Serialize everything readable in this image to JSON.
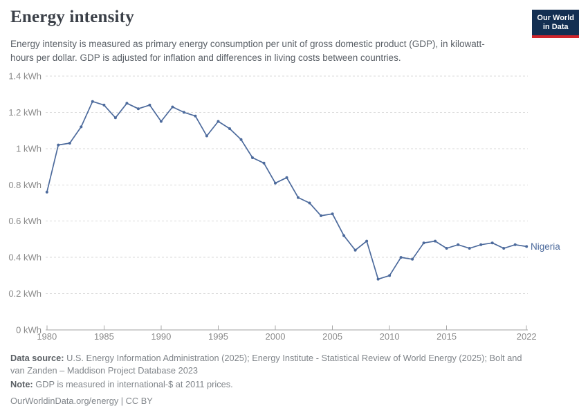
{
  "header": {
    "title": "Energy intensity",
    "subtitle": "Energy intensity is measured as primary energy consumption per unit of gross domestic product (GDP), in kilowatt-hours per dollar. GDP is adjusted for inflation and differences in living costs between countries.",
    "logo": {
      "line1": "Our World",
      "line2": "in Data"
    }
  },
  "chart_data": {
    "type": "line",
    "title": "Energy intensity",
    "unit": "kWh",
    "xlabel": "",
    "ylabel": "",
    "xlim": [
      1980,
      2022
    ],
    "ylim": [
      0,
      1.4
    ],
    "grid": "horizontal-dashed",
    "legend_position": "end-of-line-label",
    "x": [
      1980,
      1981,
      1982,
      1983,
      1984,
      1985,
      1986,
      1987,
      1988,
      1989,
      1990,
      1991,
      1992,
      1993,
      1994,
      1995,
      1996,
      1997,
      1998,
      1999,
      2000,
      2001,
      2002,
      2003,
      2004,
      2005,
      2006,
      2007,
      2008,
      2009,
      2010,
      2011,
      2012,
      2013,
      2014,
      2015,
      2016,
      2017,
      2018,
      2019,
      2020,
      2021,
      2022
    ],
    "series": [
      {
        "name": "Nigeria",
        "color": "#4c6a9c",
        "values": [
          0.76,
          1.02,
          1.03,
          1.12,
          1.26,
          1.24,
          1.17,
          1.25,
          1.22,
          1.24,
          1.15,
          1.23,
          1.2,
          1.18,
          1.07,
          1.15,
          1.11,
          1.05,
          0.95,
          0.92,
          0.81,
          0.84,
          0.73,
          0.7,
          0.63,
          0.64,
          0.52,
          0.44,
          0.49,
          0.28,
          0.3,
          0.4,
          0.39,
          0.48,
          0.49,
          0.45,
          0.47,
          0.45,
          0.47,
          0.48,
          0.45,
          0.47,
          0.46
        ]
      }
    ],
    "x_ticks": [
      {
        "year": 1980,
        "label": "1980"
      },
      {
        "year": 1985,
        "label": "1985"
      },
      {
        "year": 1990,
        "label": "1990"
      },
      {
        "year": 1995,
        "label": "1995"
      },
      {
        "year": 2000,
        "label": "2000"
      },
      {
        "year": 2005,
        "label": "2005"
      },
      {
        "year": 2010,
        "label": "2010"
      },
      {
        "year": 2015,
        "label": "2015"
      },
      {
        "year": 2022,
        "label": "2022"
      }
    ],
    "y_ticks": [
      {
        "value": 0,
        "label": "0 kWh"
      },
      {
        "value": 0.2,
        "label": "0.2 kWh"
      },
      {
        "value": 0.4,
        "label": "0.4 kWh"
      },
      {
        "value": 0.6,
        "label": "0.6 kWh"
      },
      {
        "value": 0.8,
        "label": "0.8 kWh"
      },
      {
        "value": 1,
        "label": "1 kWh"
      },
      {
        "value": 1.2,
        "label": "1.2 kWh"
      },
      {
        "value": 1.4,
        "label": "1.4 kWh"
      }
    ]
  },
  "footer": {
    "datasource_label": "Data source:",
    "datasource_text": " U.S. Energy Information Administration (2025); Energy Institute - Statistical Review of World Energy (2025); Bolt and van Zanden – Maddison Project Database 2023",
    "note_label": "Note:",
    "note_text": " GDP is measured in international-$ at 2011 prices.",
    "license": "OurWorldinData.org/energy | CC BY"
  },
  "colors": {
    "series_line": "#4c6a9c",
    "logo_background": "#132f52",
    "logo_bar": "#d0252c",
    "title_text": "#3b4048",
    "subtitle_text": "#595f66",
    "axis_text": "#8b8b8b",
    "gridline": "#d9d9d9",
    "footer_text": "#80858a"
  }
}
